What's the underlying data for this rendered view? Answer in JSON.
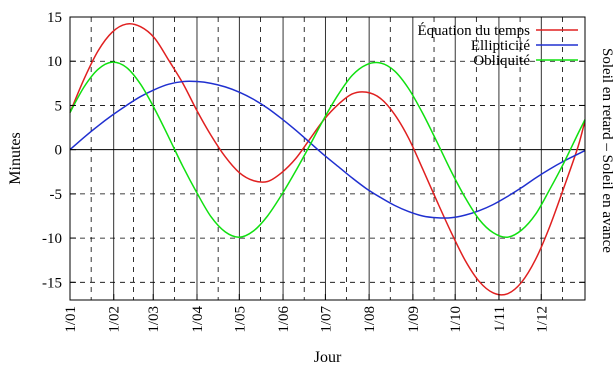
{
  "chart_data": {
    "type": "line",
    "title": "",
    "xlabel": "Jour",
    "ylabel": "Minutes",
    "ylabel_right": "Soleil en retard – Soleil  en avance",
    "xlim": [
      0,
      365
    ],
    "ylim": [
      -17,
      15
    ],
    "y_ticks": [
      15,
      10,
      5,
      0,
      -5,
      -10,
      -15
    ],
    "month_ticks": [
      {
        "label": "1/01",
        "day": 0
      },
      {
        "label": "1/02",
        "day": 31
      },
      {
        "label": "1/03",
        "day": 59
      },
      {
        "label": "1/04",
        "day": 90
      },
      {
        "label": "1/05",
        "day": 120
      },
      {
        "label": "1/06",
        "day": 151
      },
      {
        "label": "1/07",
        "day": 181
      },
      {
        "label": "1/08",
        "day": 212
      },
      {
        "label": "1/09",
        "day": 243
      },
      {
        "label": "1/10",
        "day": 273
      },
      {
        "label": "1/11",
        "day": 304
      },
      {
        "label": "1/12",
        "day": 334
      }
    ],
    "mid_month_days": [
      15,
      45,
      74,
      105,
      135,
      166,
      196,
      227,
      258,
      288,
      319,
      349
    ],
    "grid": true,
    "legend_position": "top-right",
    "series": [
      {
        "name": "Équation du temps",
        "color": "#e02020",
        "x": [
          0,
          10,
          20,
          30,
          40,
          50,
          60,
          70,
          80,
          90,
          100,
          110,
          120,
          130,
          140,
          150,
          160,
          170,
          180,
          190,
          200,
          210,
          220,
          230,
          240,
          250,
          260,
          270,
          280,
          290,
          300,
          310,
          320,
          330,
          340,
          350,
          360,
          365
        ],
        "y": [
          4.2,
          8.0,
          11.2,
          13.3,
          14.2,
          13.9,
          12.6,
          10.1,
          7.5,
          4.4,
          1.6,
          -0.8,
          -2.6,
          -3.5,
          -3.6,
          -2.6,
          -1.0,
          1.2,
          3.4,
          5.1,
          6.3,
          6.5,
          5.8,
          4.0,
          1.3,
          -2.2,
          -5.8,
          -9.3,
          -12.5,
          -14.9,
          -16.2,
          -16.3,
          -15.0,
          -12.4,
          -8.7,
          -4.3,
          0.3,
          3.3
        ]
      },
      {
        "name": "Ellipticité",
        "color": "#2030d0",
        "x": [
          0,
          10,
          20,
          30,
          40,
          50,
          60,
          70,
          80,
          90,
          100,
          110,
          120,
          130,
          140,
          150,
          160,
          170,
          180,
          190,
          200,
          210,
          220,
          230,
          240,
          250,
          260,
          270,
          280,
          290,
          300,
          310,
          320,
          330,
          340,
          350,
          360,
          365
        ],
        "y": [
          0.0,
          1.4,
          2.7,
          3.9,
          5.0,
          6.0,
          6.8,
          7.4,
          7.7,
          7.7,
          7.5,
          7.1,
          6.5,
          5.7,
          4.7,
          3.5,
          2.2,
          0.8,
          -0.6,
          -1.9,
          -3.2,
          -4.4,
          -5.4,
          -6.3,
          -7.0,
          -7.5,
          -7.7,
          -7.7,
          -7.4,
          -6.9,
          -6.2,
          -5.3,
          -4.3,
          -3.2,
          -2.2,
          -1.3,
          -0.5,
          -0.1
        ]
      },
      {
        "name": "Obliquité",
        "color": "#10e010",
        "x": [
          0,
          10,
          20,
          30,
          40,
          50,
          60,
          70,
          80,
          90,
          100,
          110,
          120,
          130,
          140,
          150,
          160,
          170,
          180,
          190,
          200,
          210,
          220,
          230,
          240,
          250,
          260,
          270,
          280,
          290,
          300,
          310,
          320,
          330,
          340,
          350,
          360,
          365
        ],
        "y": [
          4.2,
          7.1,
          9.1,
          9.9,
          9.3,
          7.4,
          4.6,
          1.4,
          -1.9,
          -4.9,
          -7.6,
          -9.3,
          -9.9,
          -9.2,
          -7.5,
          -5.1,
          -2.4,
          0.5,
          3.5,
          6.2,
          8.4,
          9.6,
          9.8,
          8.9,
          6.9,
          4.1,
          0.9,
          -2.4,
          -5.4,
          -7.9,
          -9.4,
          -9.9,
          -9.1,
          -7.3,
          -4.5,
          -1.5,
          1.8,
          3.4
        ]
      }
    ]
  }
}
